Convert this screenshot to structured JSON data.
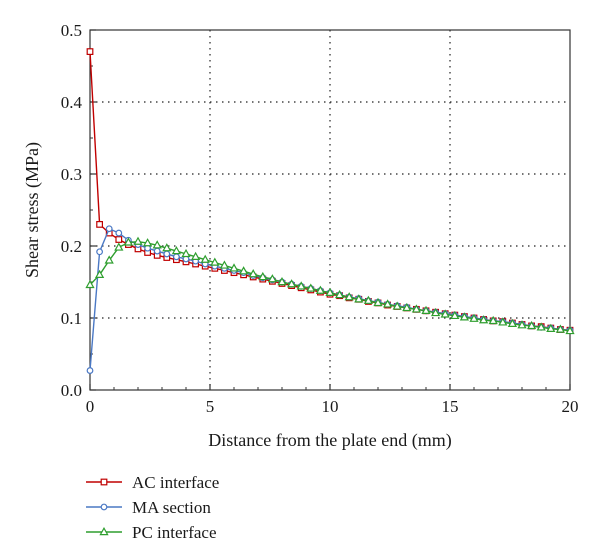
{
  "chart_data": {
    "type": "line",
    "title": "",
    "xlabel": "Distance from the plate end (mm)",
    "ylabel": "Shear stress (MPa)",
    "xlim": [
      0,
      20
    ],
    "ylim": [
      0,
      0.5
    ],
    "xticks": [
      0,
      5,
      10,
      15,
      20
    ],
    "yticks": [
      0,
      0.1,
      0.2,
      0.3,
      0.4,
      0.5
    ],
    "xtick_labels": [
      "0",
      "5",
      "10",
      "15",
      "20"
    ],
    "ytick_labels": [
      "0.0",
      "0.1",
      "0.2",
      "0.3",
      "0.4",
      "0.5"
    ],
    "grid": "dotted",
    "legend_position": "bottom-left, below plot",
    "series": [
      {
        "name": "AC interface",
        "color": "#c00000",
        "marker": "square",
        "x": [
          0,
          0.4,
          0.8,
          1.2,
          1.6,
          2.0,
          2.4,
          2.8,
          3.2,
          3.6,
          4.0,
          4.4,
          4.8,
          5.2,
          5.6,
          6.0,
          6.4,
          6.8,
          7.2,
          7.6,
          8.0,
          8.4,
          8.8,
          9.2,
          9.6,
          10.0,
          10.4,
          10.8,
          11.2,
          11.6,
          12.0,
          12.4,
          12.8,
          13.2,
          13.6,
          14.0,
          14.4,
          14.8,
          15.2,
          15.6,
          16.0,
          16.4,
          16.8,
          17.2,
          17.6,
          18.0,
          18.4,
          18.8,
          19.2,
          19.6,
          20.0
        ],
        "y": [
          0.47,
          0.23,
          0.218,
          0.209,
          0.202,
          0.196,
          0.191,
          0.187,
          0.184,
          0.181,
          0.178,
          0.175,
          0.172,
          0.169,
          0.166,
          0.163,
          0.16,
          0.157,
          0.154,
          0.151,
          0.148,
          0.145,
          0.142,
          0.139,
          0.136,
          0.133,
          0.131,
          0.128,
          0.126,
          0.123,
          0.121,
          0.118,
          0.116,
          0.114,
          0.112,
          0.11,
          0.108,
          0.106,
          0.104,
          0.102,
          0.1,
          0.098,
          0.096,
          0.095,
          0.093,
          0.091,
          0.089,
          0.088,
          0.086,
          0.084,
          0.083
        ]
      },
      {
        "name": "MA section",
        "color": "#4a78c4",
        "marker": "circle",
        "x": [
          0,
          0.4,
          0.8,
          1.2,
          1.6,
          2.0,
          2.4,
          2.8,
          3.2,
          3.6,
          4.0,
          4.4,
          4.8,
          5.2,
          5.6,
          6.0,
          6.4,
          6.8,
          7.2,
          7.6,
          8.0,
          8.4,
          8.8,
          9.2,
          9.6,
          10.0,
          10.4,
          10.8,
          11.2,
          11.6,
          12.0,
          12.4,
          12.8,
          13.2,
          13.6,
          14.0,
          14.4,
          14.8,
          15.2,
          15.6,
          16.0,
          16.4,
          16.8,
          17.2,
          17.6,
          18.0,
          18.4,
          18.8,
          19.2,
          19.6,
          20.0
        ],
        "y": [
          0.027,
          0.192,
          0.224,
          0.218,
          0.208,
          0.202,
          0.197,
          0.193,
          0.189,
          0.185,
          0.182,
          0.179,
          0.175,
          0.172,
          0.169,
          0.166,
          0.163,
          0.159,
          0.156,
          0.153,
          0.15,
          0.147,
          0.144,
          0.141,
          0.138,
          0.135,
          0.132,
          0.129,
          0.127,
          0.124,
          0.122,
          0.119,
          0.117,
          0.115,
          0.112,
          0.11,
          0.108,
          0.106,
          0.104,
          0.102,
          0.1,
          0.098,
          0.096,
          0.095,
          0.093,
          0.091,
          0.089,
          0.087,
          0.086,
          0.084,
          0.083
        ]
      },
      {
        "name": "PC interface",
        "color": "#2e9e2e",
        "marker": "triangle",
        "x": [
          0,
          0.4,
          0.8,
          1.2,
          1.6,
          2.0,
          2.4,
          2.8,
          3.2,
          3.6,
          4.0,
          4.4,
          4.8,
          5.2,
          5.6,
          6.0,
          6.4,
          6.8,
          7.2,
          7.6,
          8.0,
          8.4,
          8.8,
          9.2,
          9.6,
          10.0,
          10.4,
          10.8,
          11.2,
          11.6,
          12.0,
          12.4,
          12.8,
          13.2,
          13.6,
          14.0,
          14.4,
          14.8,
          15.2,
          15.6,
          16.0,
          16.4,
          16.8,
          17.2,
          17.6,
          18.0,
          18.4,
          18.8,
          19.2,
          19.6,
          20.0
        ],
        "y": [
          0.146,
          0.16,
          0.18,
          0.198,
          0.205,
          0.206,
          0.204,
          0.201,
          0.197,
          0.193,
          0.189,
          0.185,
          0.181,
          0.177,
          0.173,
          0.169,
          0.165,
          0.161,
          0.157,
          0.154,
          0.15,
          0.147,
          0.144,
          0.141,
          0.138,
          0.135,
          0.132,
          0.129,
          0.126,
          0.124,
          0.121,
          0.119,
          0.116,
          0.114,
          0.112,
          0.11,
          0.107,
          0.105,
          0.103,
          0.101,
          0.099,
          0.097,
          0.096,
          0.094,
          0.092,
          0.09,
          0.089,
          0.087,
          0.085,
          0.084,
          0.082
        ]
      }
    ]
  }
}
